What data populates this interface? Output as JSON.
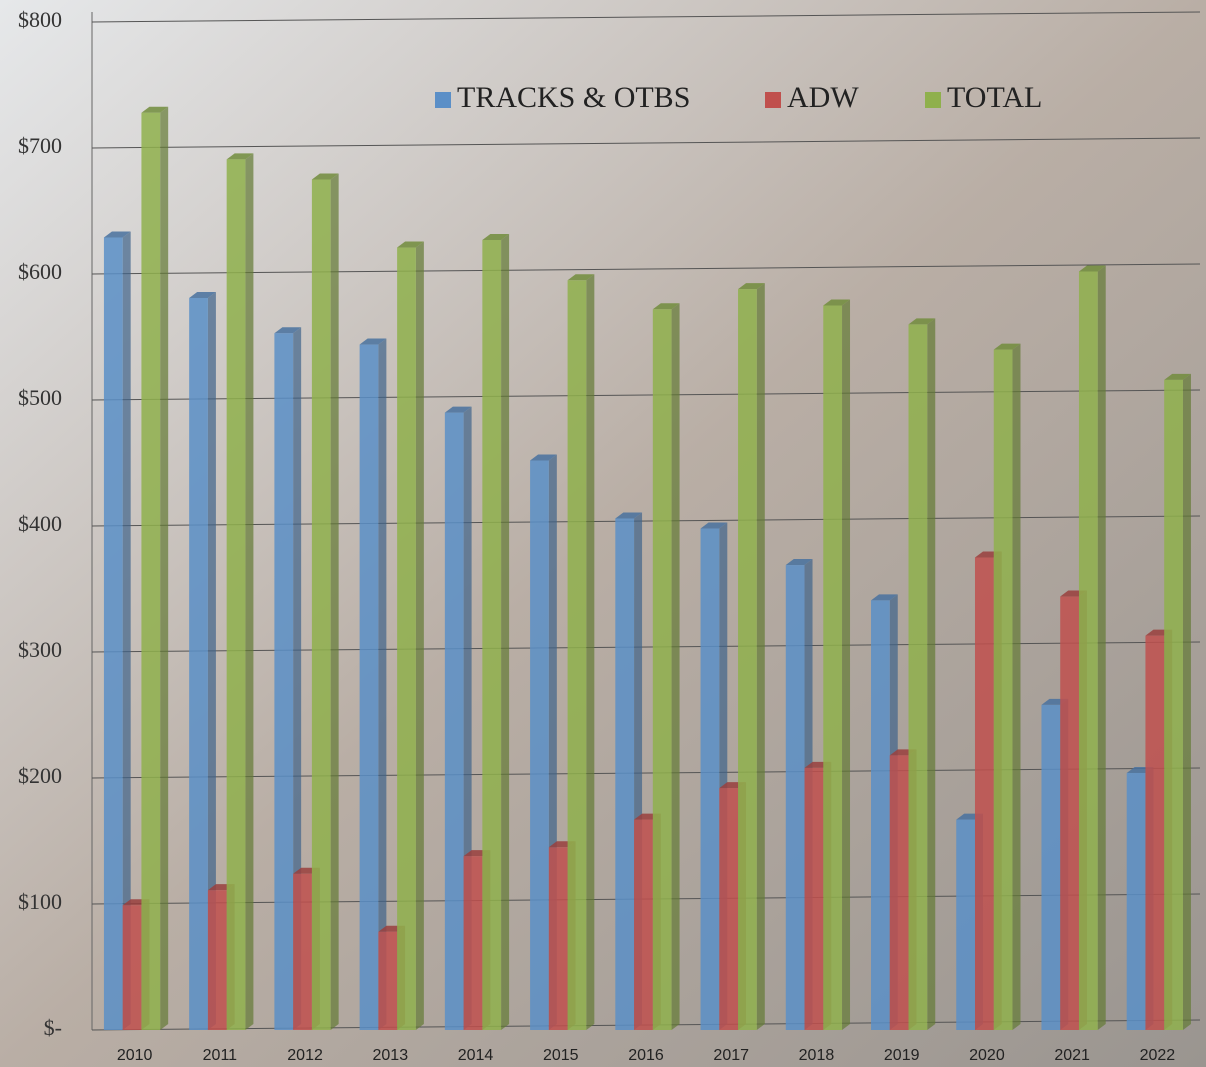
{
  "chart_data": {
    "type": "bar",
    "categories": [
      "2010",
      "2011",
      "2012",
      "2013",
      "2014",
      "2015",
      "2016",
      "2017",
      "2018",
      "2019",
      "2020",
      "2021",
      "2022"
    ],
    "series": [
      {
        "name": "TRACKS & OTBS",
        "color": "#5b8fc7",
        "values": [
          629,
          581,
          553,
          544,
          490,
          452,
          406,
          398,
          369,
          341,
          167,
          258,
          204
        ]
      },
      {
        "name": "ADW",
        "color": "#c0504d",
        "values": [
          99,
          111,
          124,
          78,
          138,
          145,
          167,
          192,
          208,
          218,
          375,
          344,
          313
        ]
      },
      {
        "name": "TOTAL",
        "color": "#8fb04c",
        "values": [
          728,
          691,
          675,
          621,
          627,
          595,
          572,
          588,
          575,
          560,
          540,
          602,
          516
        ]
      }
    ],
    "ylim": [
      0,
      800
    ],
    "yticks": [
      {
        "value": 0,
        "label": "$-"
      },
      {
        "value": 100,
        "label": "$100"
      },
      {
        "value": 200,
        "label": "$200"
      },
      {
        "value": 300,
        "label": "$300"
      },
      {
        "value": 400,
        "label": "$400"
      },
      {
        "value": 500,
        "label": "$500"
      },
      {
        "value": 600,
        "label": "$600"
      },
      {
        "value": 700,
        "label": "$700"
      },
      {
        "value": 800,
        "label": "$800"
      }
    ],
    "grid": true,
    "legend": "top"
  }
}
